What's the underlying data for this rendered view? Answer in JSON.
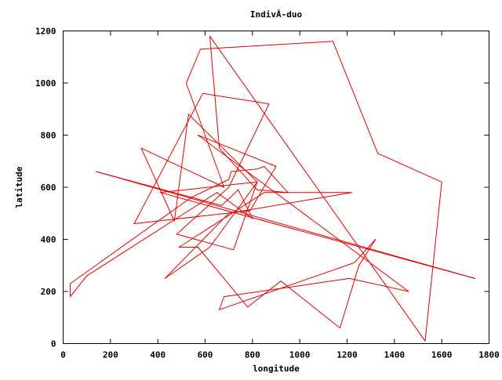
{
  "chart_data": {
    "type": "line",
    "title": "IndivĂ-duo",
    "xlabel": "longitude",
    "ylabel": "latitude",
    "xlim": [
      0,
      1800
    ],
    "ylim": [
      0,
      1200
    ],
    "xticks": [
      "0",
      "200",
      "400",
      "600",
      "800",
      "1000",
      "1200",
      "1400",
      "1600",
      "1800"
    ],
    "yticks": [
      "0",
      "200",
      "400",
      "600",
      "800",
      "1000",
      "1200"
    ],
    "grid": false,
    "legend": "none",
    "line_color": "#e00000",
    "series": [
      {
        "x": [
          30,
          30,
          540,
          700,
          710,
          820,
          850,
          950,
          820,
          660,
          620,
          1530,
          1600,
          1330,
          1140,
          580,
          520,
          680,
          330,
          470,
          530,
          820,
          720,
          480,
          700,
          870,
          590,
          300,
          790,
          900,
          570,
          1460,
          1210,
          680,
          660,
          1230,
          1320,
          1250,
          1170,
          920,
          780,
          570,
          490,
          850,
          1220,
          700,
          430,
          620,
          820,
          410,
          1740,
          140,
          670,
          740,
          800,
          650,
          100,
          30
        ],
        "y": [
          180,
          230,
          560,
          630,
          660,
          670,
          680,
          580,
          590,
          750,
          1180,
          10,
          620,
          730,
          1160,
          1130,
          1000,
          600,
          750,
          470,
          880,
          620,
          360,
          420,
          600,
          920,
          960,
          460,
          510,
          680,
          800,
          200,
          250,
          180,
          130,
          310,
          400,
          300,
          60,
          240,
          140,
          370,
          370,
          580,
          580,
          500,
          250,
          370,
          620,
          580,
          250,
          660,
          530,
          590,
          480,
          580,
          260,
          180
        ]
      }
    ]
  }
}
